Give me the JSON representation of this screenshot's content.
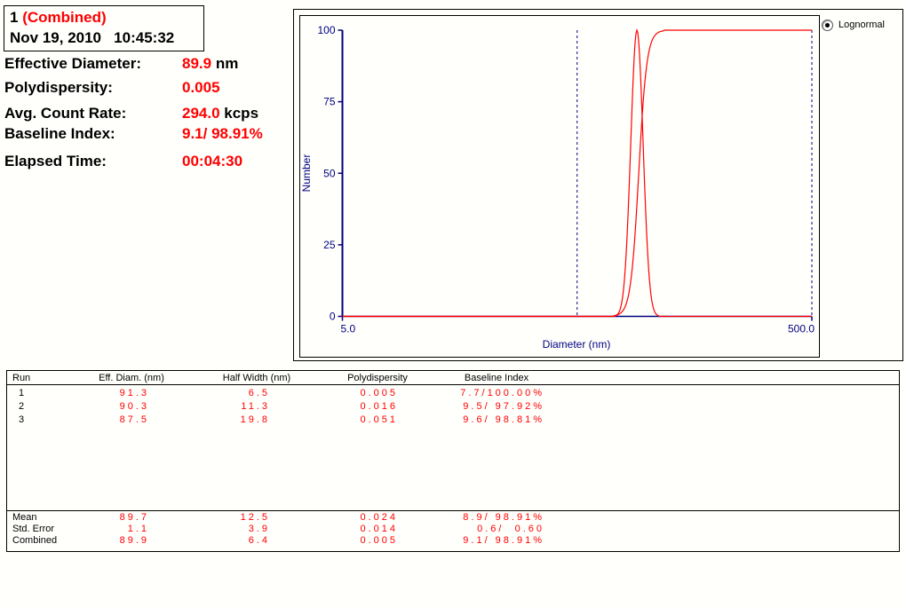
{
  "header_box": {
    "run_number": "1 ",
    "run_label": "(Combined)",
    "datetime": "Nov 19, 2010   10:45:32"
  },
  "info_panel": {
    "rows": [
      {
        "label": "Effective Diameter:",
        "value": "89.9",
        "unit": " nm"
      },
      {
        "label": "Polydispersity:",
        "value": "0.005",
        "unit": ""
      },
      {
        "label": "Avg. Count Rate:",
        "value": "294.0",
        "unit": " kcps"
      },
      {
        "label": "Baseline Index:",
        "value": "9.1/ 98.91%",
        "unit": ""
      },
      {
        "label": "Elapsed Time:",
        "value": "00:04:30",
        "unit": ""
      }
    ]
  },
  "chart_data": {
    "type": "line",
    "title": "",
    "xlabel": "Diameter (nm)",
    "ylabel": "Number",
    "x_scale": "log",
    "xlim": [
      5.0,
      500.0
    ],
    "ylim": [
      0,
      100
    ],
    "y_ticks": [
      0,
      25,
      50,
      75,
      100
    ],
    "x_tick_labels": [
      "5.0",
      "500.0"
    ],
    "grid": false,
    "legend": {
      "label": "Lognormal",
      "selected": true,
      "position": "top-right"
    },
    "cursors_nm": [
      50.0,
      500.0
    ],
    "series": [
      {
        "name": "lognormal-number-distribution",
        "shape": "peak",
        "peak_nm": 89.9,
        "half_width_nm": 6.4,
        "peak_height": 100
      },
      {
        "name": "cumulative-distribution",
        "shape": "cumulative",
        "median_nm": 91.5,
        "rise_from_nm": 80.0,
        "rise_to_nm": 110.0,
        "max": 100
      }
    ],
    "axis_color": "#000080",
    "curve_color": "#ff0000"
  },
  "results_table": {
    "headers": [
      "Run",
      "Eff. Diam. (nm)",
      "Half Width (nm)",
      "Polydispersity",
      "Baseline Index"
    ],
    "rows": [
      {
        "run": "1",
        "eff_diam": "91.3",
        "half_width": "6.5",
        "poly": "0.005",
        "baseline": "7.7/100.00%"
      },
      {
        "run": "2",
        "eff_diam": "90.3",
        "half_width": "11.3",
        "poly": "0.016",
        "baseline": "9.5/ 97.92%"
      },
      {
        "run": "3",
        "eff_diam": "87.5",
        "half_width": "19.8",
        "poly": "0.051",
        "baseline": "9.6/ 98.81%"
      }
    ],
    "summary": [
      {
        "run": "Mean",
        "eff_diam": "89.7",
        "half_width": "12.5",
        "poly": "0.024",
        "baseline": "8.9/ 98.91%"
      },
      {
        "run": "Std. Error",
        "eff_diam": "1.1",
        "half_width": "3.9",
        "poly": "0.014",
        "baseline": "0.6/  0.60"
      },
      {
        "run": "Combined",
        "eff_diam": "89.9",
        "half_width": "6.4",
        "poly": "0.005",
        "baseline": "9.1/ 98.91%"
      }
    ]
  },
  "colors": {
    "value_red": "#ff0000",
    "axis_navy": "#000080",
    "frame_black": "#000000"
  }
}
